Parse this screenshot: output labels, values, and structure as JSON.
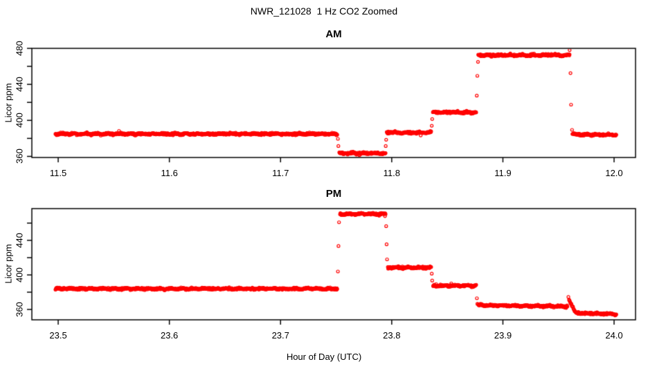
{
  "title": "NWR_121028  1 Hz CO2 Zoomed",
  "xlabel": "Hour of Day (UTC)",
  "point_color": "#ff0000",
  "axis_color": "#000000",
  "chart_data": {
    "type": "scatter",
    "marker": "open-circle",
    "sample_rate_hz": 1,
    "grid": false,
    "legend": false,
    "panels": [
      {
        "title": "AM",
        "ylabel": "Licor ppm",
        "xlim": [
          11.4763,
          12.0193
        ],
        "ylim": [
          358.8,
          480.0
        ],
        "x_ticks": [
          {
            "value": 11.5,
            "label": "11.5"
          },
          {
            "value": 11.6,
            "label": "11.6"
          },
          {
            "value": 11.7,
            "label": "11.7"
          },
          {
            "value": 11.8,
            "label": "11.8"
          },
          {
            "value": 11.9,
            "label": "11.9"
          },
          {
            "value": 12.0,
            "label": "12.0"
          }
        ],
        "y_ticks": [
          {
            "value": 360,
            "label": "360"
          },
          {
            "value": 380,
            "label": ""
          },
          {
            "value": 400,
            "label": "400"
          },
          {
            "value": 420,
            "label": ""
          },
          {
            "value": 440,
            "label": "440"
          },
          {
            "value": 460,
            "label": ""
          },
          {
            "value": 480,
            "label": "480"
          }
        ],
        "noise_ppm": 0.55,
        "segments": [
          {
            "t0": 11.4975,
            "t1": 11.751,
            "v0": 385.0,
            "v1": 385.0
          },
          {
            "t0": 11.7528,
            "t1": 11.7945,
            "v0": 363.5,
            "v1": 363.5
          },
          {
            "t0": 11.7955,
            "t1": 11.8355,
            "v0": 386.5,
            "v1": 386.5
          },
          {
            "t0": 11.837,
            "t1": 11.876,
            "v0": 409.0,
            "v1": 409.0
          },
          {
            "t0": 11.8778,
            "t1": 11.96,
            "v0": 472.5,
            "v1": 472.5
          },
          {
            "t0": 11.9625,
            "t1": 12.002,
            "v0": 384.5,
            "v1": 384.0
          }
        ],
        "transition_points": [
          [
            11.7516,
            379.5
          ],
          [
            11.752,
            371.5
          ],
          [
            11.7946,
            371.5
          ],
          [
            11.795,
            378.5
          ],
          [
            11.836,
            394.0
          ],
          [
            11.8364,
            401.5
          ],
          [
            11.8765,
            427.5
          ],
          [
            11.877,
            449.5
          ],
          [
            11.8776,
            465.0
          ],
          [
            11.96,
            478.0
          ],
          [
            11.9608,
            452.5
          ],
          [
            11.9613,
            417.5
          ],
          [
            11.9622,
            389.5
          ]
        ]
      },
      {
        "title": "PM",
        "ylabel": "Licor ppm",
        "xlim": [
          23.4763,
          24.0193
        ],
        "ylim": [
          348.0,
          476.8
        ],
        "x_ticks": [
          {
            "value": 23.5,
            "label": "23.5"
          },
          {
            "value": 23.6,
            "label": "23.6"
          },
          {
            "value": 23.7,
            "label": "23.7"
          },
          {
            "value": 23.8,
            "label": "23.8"
          },
          {
            "value": 23.9,
            "label": "23.9"
          },
          {
            "value": 24.0,
            "label": "24.0"
          }
        ],
        "y_ticks": [
          {
            "value": 360,
            "label": "360"
          },
          {
            "value": 380,
            "label": ""
          },
          {
            "value": 400,
            "label": "400"
          },
          {
            "value": 420,
            "label": ""
          },
          {
            "value": 440,
            "label": "440"
          },
          {
            "value": 460,
            "label": ""
          }
        ],
        "noise_ppm": 0.55,
        "segments": [
          {
            "t0": 23.4975,
            "t1": 23.751,
            "v0": 384.0,
            "v1": 384.0
          },
          {
            "t0": 23.7535,
            "t1": 23.7945,
            "v0": 470.5,
            "v1": 470.5
          },
          {
            "t0": 23.7965,
            "t1": 23.8355,
            "v0": 408.5,
            "v1": 408.5
          },
          {
            "t0": 23.8372,
            "t1": 23.876,
            "v0": 387.5,
            "v1": 387.5
          },
          {
            "t0": 23.8778,
            "t1": 23.958,
            "v0": 365.0,
            "v1": 363.5
          },
          {
            "t0": 23.9595,
            "t1": 23.9655,
            "v0": 371.0,
            "v1": 356.5
          },
          {
            "t0": 23.966,
            "t1": 24.002,
            "v0": 356.0,
            "v1": 354.5
          }
        ],
        "transition_points": [
          [
            23.7516,
            404.0
          ],
          [
            23.7521,
            433.5
          ],
          [
            23.7526,
            461.0
          ],
          [
            23.795,
            456.5
          ],
          [
            23.7954,
            435.5
          ],
          [
            23.7958,
            418.0
          ],
          [
            23.836,
            401.5
          ],
          [
            23.8364,
            393.5
          ],
          [
            23.8766,
            373.0
          ],
          [
            23.877,
            366.5
          ],
          [
            23.9589,
            374.5
          ]
        ]
      }
    ]
  }
}
